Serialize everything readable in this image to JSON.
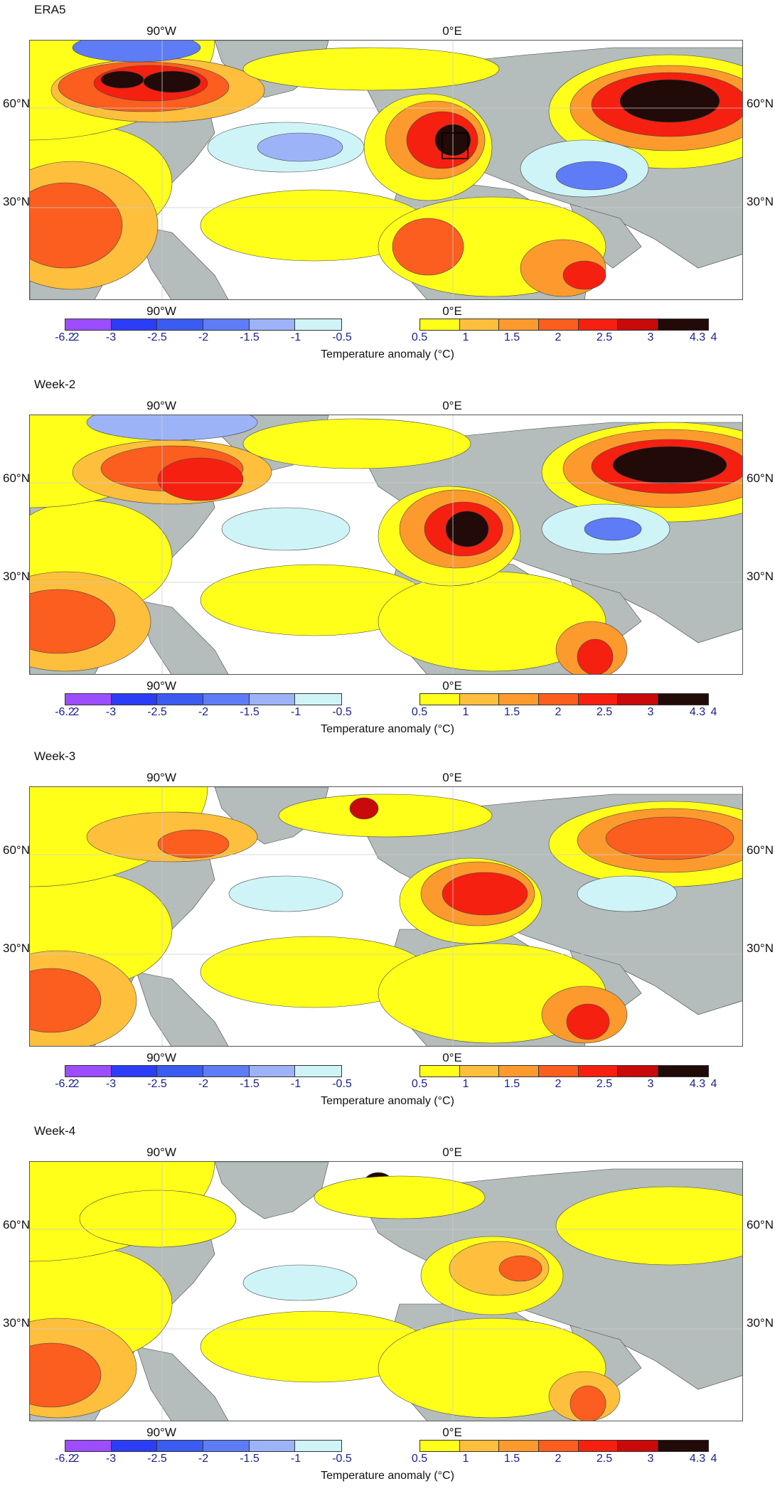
{
  "colorbar": {
    "negative_colors": [
      "#9b4dff",
      "#2b3df5",
      "#3b5cf0",
      "#5d7cf6",
      "#9db3f8",
      "#cff4f8"
    ],
    "negative_ticks": [
      "-6.2",
      "2",
      "-3",
      "-2.5",
      "-2",
      "-1.5",
      "-1",
      "-0.5"
    ],
    "positive_colors": [
      "#ffff1a",
      "#fdbf3c",
      "#fd9a2e",
      "#fb5e1e",
      "#f52010",
      "#c80a0a",
      "#220a08"
    ],
    "positive_ticks": [
      "0.5",
      "1",
      "1.5",
      "2",
      "2.5",
      "3",
      "4.3",
      "4"
    ],
    "label": "Temperature anomaly (°C)"
  },
  "land_color": "#b4bcbc",
  "ocean_color": "#ffffff",
  "axis": {
    "lon_left": "90°W",
    "lon_right": "0°E",
    "lat_60": "60°N",
    "lat_30": "30°N"
  },
  "panels": [
    {
      "title": "ERA5",
      "has_box": true
    },
    {
      "title": "Week-2",
      "has_box": false
    },
    {
      "title": "Week-3",
      "has_box": false
    },
    {
      "title": "Week-4",
      "has_box": false
    }
  ]
}
